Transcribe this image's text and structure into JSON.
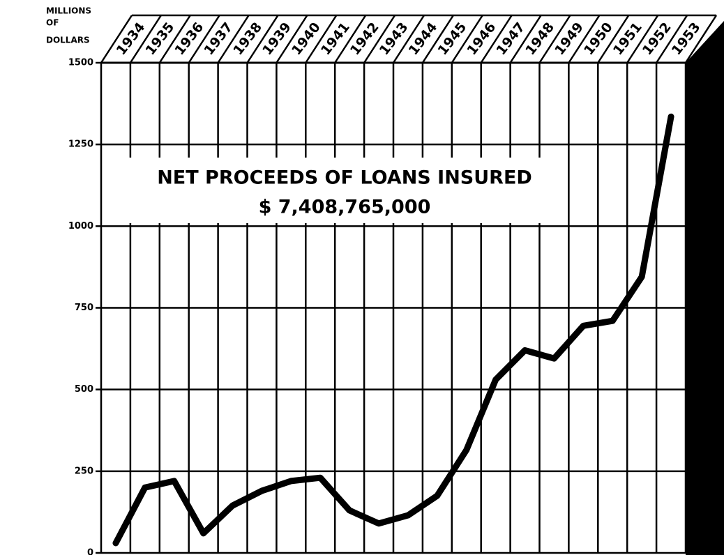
{
  "chart_data": {
    "type": "line",
    "y_label": [
      "MILLIONS",
      "OF",
      "DOLLARS"
    ],
    "annotations": [
      "NET PROCEEDS OF LOANS INSURED",
      "$ 7,408,765,000"
    ],
    "categories": [
      "1934",
      "1935",
      "1936",
      "1937",
      "1938",
      "1939",
      "1940",
      "1941",
      "1942",
      "1943",
      "1944",
      "1945",
      "1946",
      "1947",
      "1948",
      "1949",
      "1950",
      "1951",
      "1952",
      "1953"
    ],
    "values": [
      30,
      200,
      220,
      60,
      145,
      190,
      220,
      230,
      130,
      90,
      115,
      175,
      315,
      530,
      620,
      595,
      695,
      710,
      845,
      1335
    ],
    "color": "#000000",
    "ylim": [
      0,
      1500
    ],
    "yticks": [
      0,
      250,
      500,
      750,
      1000,
      1250,
      1500
    ],
    "grid": true
  }
}
